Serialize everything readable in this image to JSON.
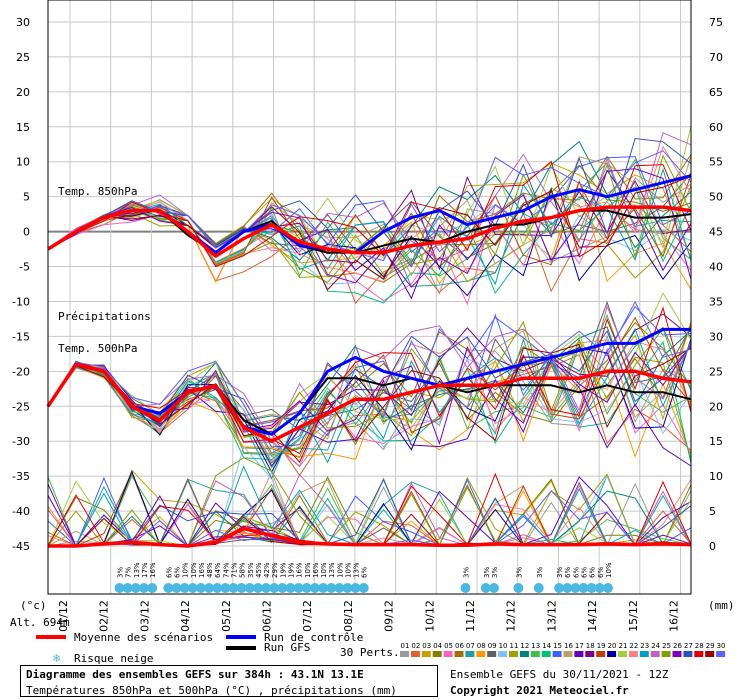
{
  "chart_data": {
    "type": "line",
    "left_axis": {
      "ticks": [
        30,
        25,
        20,
        15,
        10,
        5,
        0,
        -5,
        -10,
        -15,
        -20,
        -25,
        -30,
        -35,
        -40,
        -45
      ],
      "unit": "(°c)"
    },
    "right_axis": {
      "ticks": [
        75,
        70,
        65,
        60,
        55,
        50,
        45,
        40,
        35,
        30,
        25,
        20,
        15,
        10,
        5,
        0
      ],
      "unit": "(mm)"
    },
    "x_labels": [
      "01/12",
      "02/12",
      "03/12",
      "04/12",
      "05/12",
      "06/12",
      "07/12",
      "08/12",
      "09/12",
      "10/12",
      "11/12",
      "12/12",
      "13/12",
      "14/12",
      "15/12",
      "16/12"
    ],
    "altitude": "Alt. 694m",
    "annotations": {
      "t850": "Temp. 850hPa",
      "precip": "Précipitations",
      "t500": "Temp. 500hPa"
    },
    "t850": {
      "mean": [
        -2.5,
        0,
        2,
        3,
        3,
        0,
        -3.5,
        -1,
        1,
        -1.5,
        -2.5,
        -3,
        -3,
        -2,
        -1.5,
        -1,
        0.5,
        1.5,
        2,
        3,
        3.5,
        3.5,
        3.5,
        3
      ],
      "control": [
        -2.5,
        0,
        2,
        3,
        3,
        0,
        -3,
        0,
        1,
        -2,
        -2.5,
        -3,
        0,
        2,
        3,
        1,
        2,
        3,
        5,
        6,
        5,
        6,
        7,
        8
      ],
      "gfs": [
        -2.5,
        0,
        2,
        3,
        3,
        -0.5,
        -3,
        0,
        1.5,
        -2,
        -3,
        -3,
        -2,
        -1,
        -1.5,
        0,
        1,
        1,
        2,
        3,
        3,
        2,
        2,
        2.5
      ]
    },
    "t500": {
      "mean": [
        -25,
        -19,
        -20,
        -25,
        -27,
        -23,
        -22,
        -28,
        -30,
        -28,
        -26,
        -24,
        -24,
        -23,
        -22,
        -22,
        -22,
        -21,
        -21,
        -21,
        -20,
        -20,
        -21,
        -21.5
      ],
      "control": [
        -25,
        -19,
        -20,
        -25,
        -26,
        -23,
        -22,
        -28,
        -29,
        -26,
        -20,
        -18,
        -20,
        -21,
        -22,
        -21,
        -20,
        -19,
        -18,
        -17,
        -16,
        -16,
        -14,
        -14
      ],
      "gfs": [
        -25,
        -19,
        -20,
        -25,
        -26,
        -23,
        -22,
        -27,
        -29,
        -26,
        -21,
        -21,
        -22,
        -21,
        -22,
        -23,
        -22,
        -22,
        -22,
        -23,
        -22,
        -23,
        -23,
        -24
      ]
    },
    "precip_mean": [
      0,
      0,
      0.3,
      0.5,
      0.2,
      0,
      0.5,
      2.5,
      1.5,
      0.5,
      0.3,
      0.2,
      0.2,
      0.2,
      0.1,
      0.1,
      0.3,
      0.2,
      0.2,
      0.2,
      0.3,
      0.2,
      0.3,
      0.2
    ],
    "snow_risk": [
      {
        "x": 2.2,
        "p": "3%"
      },
      {
        "x": 2.4,
        "p": "7%"
      },
      {
        "x": 2.6,
        "p": "13%"
      },
      {
        "x": 2.8,
        "p": "17%"
      },
      {
        "x": 3.0,
        "p": "16%"
      },
      {
        "x": 3.4,
        "p": "6%"
      },
      {
        "x": 3.6,
        "p": "6%"
      },
      {
        "x": 3.8,
        "p": "10%"
      },
      {
        "x": 4.0,
        "p": "10%"
      },
      {
        "x": 4.2,
        "p": "16%"
      },
      {
        "x": 4.4,
        "p": "48%"
      },
      {
        "x": 4.6,
        "p": "64%"
      },
      {
        "x": 4.8,
        "p": "74%"
      },
      {
        "x": 5.0,
        "p": "71%"
      },
      {
        "x": 5.2,
        "p": "58%"
      },
      {
        "x": 5.4,
        "p": "35%"
      },
      {
        "x": 5.6,
        "p": "45%"
      },
      {
        "x": 5.8,
        "p": "42%"
      },
      {
        "x": 6.0,
        "p": "29%"
      },
      {
        "x": 6.2,
        "p": "19%"
      },
      {
        "x": 6.4,
        "p": "19%"
      },
      {
        "x": 6.6,
        "p": "16%"
      },
      {
        "x": 6.8,
        "p": "10%"
      },
      {
        "x": 7.0,
        "p": "16%"
      },
      {
        "x": 7.2,
        "p": "10%"
      },
      {
        "x": 7.4,
        "p": "13%"
      },
      {
        "x": 7.6,
        "p": "10%"
      },
      {
        "x": 7.8,
        "p": "10%"
      },
      {
        "x": 8.0,
        "p": "13%"
      },
      {
        "x": 8.2,
        "p": "6%"
      },
      {
        "x": 10.7,
        "p": "3%"
      },
      {
        "x": 11.2,
        "p": "3%"
      },
      {
        "x": 11.4,
        "p": "3%"
      },
      {
        "x": 12.0,
        "p": "3%"
      },
      {
        "x": 12.5,
        "p": "3%"
      },
      {
        "x": 13.0,
        "p": "3%"
      },
      {
        "x": 13.2,
        "p": "6%"
      },
      {
        "x": 13.4,
        "p": "6%"
      },
      {
        "x": 13.6,
        "p": "6%"
      },
      {
        "x": 13.8,
        "p": "6%"
      },
      {
        "x": 14.0,
        "p": "6%"
      },
      {
        "x": 14.2,
        "p": "10%"
      }
    ]
  },
  "legend": {
    "mean": "Moyenne des scénarios",
    "control": "Run de contrôle",
    "gfs": "Run GFS",
    "snow": "Risque neige",
    "perts": "30 Perts.",
    "pert_numbers": [
      "01",
      "02",
      "03",
      "04",
      "05",
      "06",
      "07",
      "08",
      "09",
      "10",
      "11",
      "12",
      "13",
      "14",
      "15",
      "16",
      "17",
      "18",
      "19",
      "20",
      "21",
      "22",
      "23",
      "24",
      "25",
      "26",
      "27",
      "28",
      "29",
      "30"
    ],
    "pert_colors": [
      "#9a9a9a",
      "#e06030",
      "#c8a000",
      "#808000",
      "#ff60c0",
      "#a07000",
      "#20a0a0",
      "#ff9900",
      "#606060",
      "#80c0ff",
      "#a0a000",
      "#008080",
      "#40c040",
      "#00c080",
      "#4060ff",
      "#c0a060",
      "#6000c0",
      "#800080",
      "#c04000",
      "#0000a0",
      "#a0d040",
      "#ff8080",
      "#00a0c0",
      "#c060c0",
      "#80a000",
      "#8000c0",
      "#3050c0",
      "#e00000",
      "#a00000",
      "#6060ff"
    ],
    "colors": {
      "mean": "#ff0000",
      "control": "#0000ff",
      "gfs": "#000000",
      "snow": "#4ab8e0"
    }
  },
  "footer": {
    "title": "Diagramme des ensembles GEFS sur 384h : 43.1N 13.1E",
    "subtitle": "Températures 850hPa et 500hPa (°C) , précipitations (mm)",
    "run": "Ensemble GEFS du 30/11/2021 - 12Z",
    "copyright": "Copyright 2021 Meteociel.fr"
  }
}
